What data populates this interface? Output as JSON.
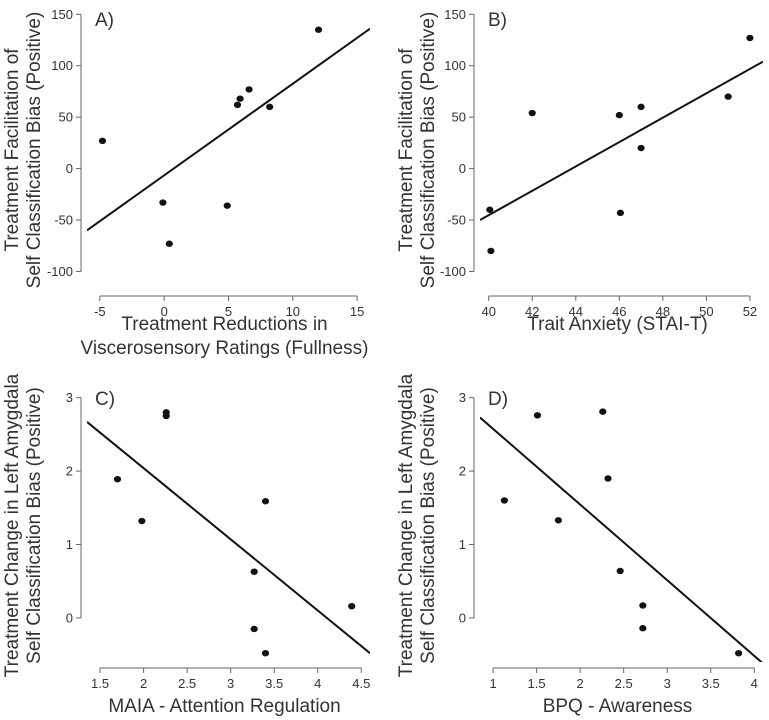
{
  "chart_data": [
    {
      "type": "scatter",
      "panel_label": "A)",
      "xlabel_lines": [
        "Treatment Reductions in",
        "Viscerosensory Ratings (Fullness)"
      ],
      "ylabel_lines": [
        "Treatment Facilitation of",
        "Self Classification Bias (Positive)"
      ],
      "xlim": [
        -6,
        16
      ],
      "ylim": [
        -118,
        160
      ],
      "x_ticks": [
        -5,
        0,
        5,
        10,
        15
      ],
      "y_ticks": [
        -100,
        -50,
        0,
        50,
        100,
        150
      ],
      "x_tick_labels": [
        "-5",
        "0",
        "5",
        "10",
        "15"
      ],
      "y_tick_labels": [
        "-100",
        "-50",
        "0",
        "50",
        "100",
        "150"
      ],
      "points": [
        {
          "x": -4.8,
          "y": 27
        },
        {
          "x": -0.1,
          "y": -33
        },
        {
          "x": 0.4,
          "y": -73
        },
        {
          "x": 4.9,
          "y": -36
        },
        {
          "x": 5.7,
          "y": 62
        },
        {
          "x": 5.9,
          "y": 68
        },
        {
          "x": 6.6,
          "y": 77
        },
        {
          "x": 8.2,
          "y": 60
        },
        {
          "x": 12.0,
          "y": 135
        }
      ],
      "fit_line": {
        "x": [
          -6,
          16
        ],
        "y": [
          -60,
          136
        ]
      }
    },
    {
      "type": "scatter",
      "panel_label": "B)",
      "xlabel_lines": [
        "Trait Anxiety (STAI-T)"
      ],
      "ylabel_lines": [
        "Treatment Facilitation of",
        "Self Classification Bias (Positive)"
      ],
      "xlim": [
        39.6,
        52.6
      ],
      "ylim": [
        -118,
        160
      ],
      "x_ticks": [
        40,
        42,
        44,
        46,
        48,
        50,
        52
      ],
      "y_ticks": [
        -100,
        -50,
        0,
        50,
        100,
        150
      ],
      "x_tick_labels": [
        "40",
        "42",
        "44",
        "46",
        "48",
        "50",
        "52"
      ],
      "y_tick_labels": [
        "-100",
        "-50",
        "0",
        "50",
        "100",
        "150"
      ],
      "points": [
        {
          "x": 40.05,
          "y": -40
        },
        {
          "x": 40.1,
          "y": -80
        },
        {
          "x": 42.0,
          "y": 54
        },
        {
          "x": 46.0,
          "y": 52
        },
        {
          "x": 46.05,
          "y": -43
        },
        {
          "x": 47.0,
          "y": 60
        },
        {
          "x": 47.0,
          "y": 20
        },
        {
          "x": 51.0,
          "y": 70
        },
        {
          "x": 52.0,
          "y": 127
        }
      ],
      "fit_line": {
        "x": [
          39.6,
          52.6
        ],
        "y": [
          -50,
          104
        ]
      }
    },
    {
      "type": "scatter",
      "panel_label": "C)",
      "xlabel_lines": [
        "MAIA - Attention Regulation"
      ],
      "ylabel_lines": [
        "Treatment Change in Left Amygdala",
        "Self Classification Bias (Positive)"
      ],
      "xlim": [
        1.35,
        4.6
      ],
      "ylim": [
        -0.6,
        3.2
      ],
      "x_ticks": [
        1.5,
        2,
        2.5,
        3,
        3.5,
        4,
        4.5
      ],
      "y_ticks": [
        0,
        1,
        2,
        3
      ],
      "x_tick_labels": [
        "1.5",
        "2",
        "2.5",
        "3",
        "3.5",
        "4",
        "4.5"
      ],
      "y_tick_labels": [
        "0",
        "1",
        "2",
        "3"
      ],
      "points": [
        {
          "x": 1.7,
          "y": 1.89
        },
        {
          "x": 1.98,
          "y": 1.32
        },
        {
          "x": 2.26,
          "y": 2.8
        },
        {
          "x": 2.26,
          "y": 2.75
        },
        {
          "x": 3.27,
          "y": 0.63
        },
        {
          "x": 3.27,
          "y": -0.15
        },
        {
          "x": 3.4,
          "y": 1.59
        },
        {
          "x": 3.4,
          "y": -0.48
        },
        {
          "x": 4.39,
          "y": 0.16
        }
      ],
      "fit_line": {
        "x": [
          1.35,
          4.6
        ],
        "y": [
          2.67,
          -0.48
        ]
      }
    },
    {
      "type": "scatter",
      "panel_label": "D)",
      "xlabel_lines": [
        "BPQ - Awareness"
      ],
      "ylabel_lines": [
        "Treatment Change in Left Amygdala",
        "Self Classification Bias (Positive)"
      ],
      "xlim": [
        0.85,
        4.1
      ],
      "ylim": [
        -0.6,
        3.2
      ],
      "x_ticks": [
        1,
        1.5,
        2,
        2.5,
        3,
        3.5,
        4
      ],
      "y_ticks": [
        0,
        1,
        2,
        3
      ],
      "x_tick_labels": [
        "1",
        "1.5",
        "2",
        "2.5",
        "3",
        "3.5",
        "4"
      ],
      "y_tick_labels": [
        "0",
        "1",
        "2",
        "3"
      ],
      "points": [
        {
          "x": 1.13,
          "y": 1.6
        },
        {
          "x": 1.51,
          "y": 2.76
        },
        {
          "x": 1.75,
          "y": 1.33
        },
        {
          "x": 2.26,
          "y": 2.81
        },
        {
          "x": 2.32,
          "y": 1.9
        },
        {
          "x": 2.46,
          "y": 0.64
        },
        {
          "x": 2.72,
          "y": 0.17
        },
        {
          "x": 2.72,
          "y": -0.14
        },
        {
          "x": 3.82,
          "y": -0.48
        }
      ],
      "fit_line": {
        "x": [
          0.85,
          4.1
        ],
        "y": [
          2.73,
          -0.62
        ]
      }
    }
  ]
}
